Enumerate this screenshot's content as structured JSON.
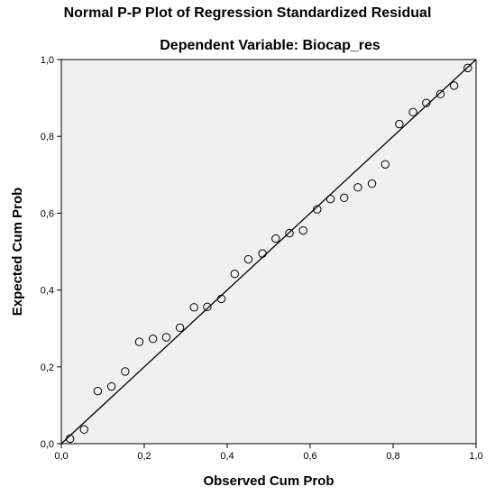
{
  "chart_data": {
    "type": "scatter",
    "title": "Normal P-P Plot of Regression Standardized Residual",
    "subtitle": "Dependent Variable: Biocap_res",
    "xlabel": "Observed Cum Prob",
    "ylabel": "Expected Cum Prob",
    "xlim": [
      0,
      1
    ],
    "ylim": [
      0,
      1
    ],
    "xticks": [
      "0,0",
      "0,2",
      "0,4",
      "0,6",
      "0,8",
      "1,0"
    ],
    "yticks": [
      "0,0",
      "0,2",
      "0,4",
      "0,6",
      "0,8",
      "1,0"
    ],
    "reference_line": [
      [
        0,
        0
      ],
      [
        1,
        1
      ]
    ],
    "grid": false,
    "points": [
      {
        "x": 0.021,
        "y": 0.013
      },
      {
        "x": 0.055,
        "y": 0.037
      },
      {
        "x": 0.088,
        "y": 0.137
      },
      {
        "x": 0.121,
        "y": 0.149
      },
      {
        "x": 0.154,
        "y": 0.188
      },
      {
        "x": 0.188,
        "y": 0.265
      },
      {
        "x": 0.221,
        "y": 0.273
      },
      {
        "x": 0.253,
        "y": 0.277
      },
      {
        "x": 0.286,
        "y": 0.302
      },
      {
        "x": 0.32,
        "y": 0.355
      },
      {
        "x": 0.352,
        "y": 0.356
      },
      {
        "x": 0.386,
        "y": 0.377
      },
      {
        "x": 0.418,
        "y": 0.442
      },
      {
        "x": 0.451,
        "y": 0.48
      },
      {
        "x": 0.485,
        "y": 0.495
      },
      {
        "x": 0.517,
        "y": 0.534
      },
      {
        "x": 0.55,
        "y": 0.548
      },
      {
        "x": 0.583,
        "y": 0.555
      },
      {
        "x": 0.617,
        "y": 0.61
      },
      {
        "x": 0.649,
        "y": 0.637
      },
      {
        "x": 0.682,
        "y": 0.64
      },
      {
        "x": 0.715,
        "y": 0.667
      },
      {
        "x": 0.749,
        "y": 0.677
      },
      {
        "x": 0.781,
        "y": 0.727
      },
      {
        "x": 0.815,
        "y": 0.832
      },
      {
        "x": 0.848,
        "y": 0.863
      },
      {
        "x": 0.88,
        "y": 0.887
      },
      {
        "x": 0.914,
        "y": 0.91
      },
      {
        "x": 0.947,
        "y": 0.932
      },
      {
        "x": 0.98,
        "y": 0.978
      }
    ],
    "colors": {
      "plot_background": "#f0f0f0",
      "marker_stroke": "#000000",
      "line": "#000000"
    }
  }
}
